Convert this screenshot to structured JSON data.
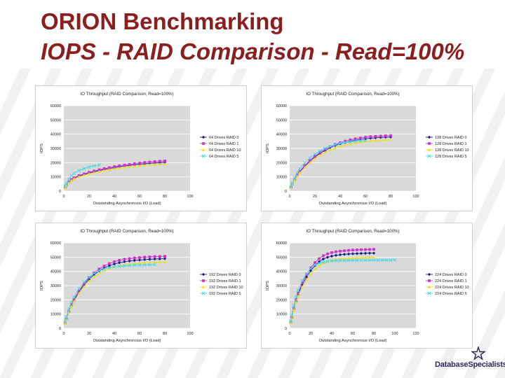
{
  "slide": {
    "title_line1": "ORION Benchmarking",
    "title_line2": "IOPS - RAID Comparison - Read=100%"
  },
  "logo": {
    "text": "DatabaseSpecialists"
  },
  "series_colors": [
    "#1a1a8c",
    "#cc33cc",
    "#e8e020",
    "#44d8e8"
  ],
  "series_markers": [
    "diamond",
    "square",
    "triangle",
    "cross"
  ],
  "chart_data": [
    {
      "type": "line",
      "title": "IO Throughput (RAID Comparison, Read=100%)",
      "xlabel": "Outstanding Asynchronous I/O (Load)",
      "ylabel": "IOPS",
      "xlim": [
        0,
        100
      ],
      "ylim": [
        0,
        60000
      ],
      "xticks": [
        0,
        20,
        40,
        60,
        80,
        100
      ],
      "yticks": [
        0,
        10000,
        20000,
        30000,
        40000,
        50000,
        60000
      ],
      "grid": true,
      "legend": "right",
      "series": [
        {
          "name": "64 Drives RAID 0",
          "x": [
            1,
            2,
            4,
            6,
            8,
            12,
            16,
            20,
            24,
            28,
            32,
            36,
            40,
            44,
            48,
            52,
            56,
            60,
            64,
            68,
            72,
            76,
            80
          ],
          "values": [
            2500,
            4000,
            6200,
            7800,
            9000,
            10500,
            11700,
            12700,
            13600,
            14400,
            15200,
            15900,
            16500,
            17100,
            17600,
            18100,
            18500,
            18900,
            19200,
            19500,
            19800,
            20000,
            20200
          ]
        },
        {
          "name": "64 Drives RAID 1",
          "x": [
            1,
            2,
            4,
            6,
            8,
            12,
            16,
            20,
            24,
            28,
            32,
            36,
            40,
            44,
            48,
            52,
            56,
            60,
            64,
            68,
            72,
            76,
            80
          ],
          "values": [
            2700,
            4200,
            6500,
            8100,
            9300,
            10900,
            12100,
            13200,
            14100,
            15000,
            15800,
            16500,
            17200,
            17800,
            18300,
            18800,
            19300,
            19700,
            20100,
            20400,
            20700,
            21000,
            21200
          ]
        },
        {
          "name": "64 Drives RAID 10",
          "x": [
            1,
            2,
            4,
            6,
            8,
            12,
            16,
            20,
            24,
            28,
            32,
            36,
            40,
            44,
            48,
            52,
            56,
            60,
            64,
            68,
            72,
            76,
            80
          ],
          "values": [
            2300,
            3800,
            5900,
            7400,
            8600,
            10000,
            11100,
            12100,
            12900,
            13700,
            14400,
            15000,
            15600,
            16100,
            16600,
            17000,
            17400,
            17800,
            18100,
            18400,
            18700,
            18900,
            19100
          ]
        },
        {
          "name": "64 Drives RAID 5",
          "x": [
            1,
            2,
            4,
            6,
            8,
            12,
            16,
            20,
            24,
            28
          ],
          "values": [
            3500,
            5500,
            8500,
            10800,
            12400,
            14400,
            15800,
            16900,
            17700,
            18300
          ]
        }
      ]
    },
    {
      "type": "line",
      "title": "IO Throughput (RAID Comparison, Read=100%)",
      "xlabel": "Outstanding Asynchronous I/O (Load)",
      "ylabel": "IOPS",
      "xlim": [
        0,
        100
      ],
      "ylim": [
        0,
        60000
      ],
      "xticks": [
        0,
        20,
        40,
        60,
        80,
        100
      ],
      "yticks": [
        0,
        10000,
        20000,
        30000,
        40000,
        50000,
        60000
      ],
      "grid": true,
      "legend": "right",
      "series": [
        {
          "name": "128 Drives RAID 0",
          "x": [
            1,
            2,
            4,
            6,
            8,
            12,
            16,
            20,
            24,
            28,
            32,
            36,
            40,
            44,
            48,
            52,
            56,
            60,
            64,
            68,
            72,
            76,
            80
          ],
          "values": [
            2500,
            4500,
            8000,
            11000,
            13500,
            17500,
            21000,
            24000,
            26500,
            28500,
            30500,
            32000,
            33200,
            34200,
            35000,
            35700,
            36300,
            36800,
            37200,
            37500,
            37700,
            37900,
            38000
          ]
        },
        {
          "name": "128 Drives RAID 1",
          "x": [
            1,
            2,
            4,
            6,
            8,
            12,
            16,
            20,
            24,
            28,
            32,
            36,
            40,
            44,
            48,
            52,
            56,
            60,
            64,
            68,
            72,
            76,
            80
          ],
          "values": [
            2600,
            4700,
            8300,
            11400,
            14000,
            18000,
            21500,
            24600,
            27200,
            29300,
            31200,
            32800,
            34000,
            35100,
            36000,
            36700,
            37300,
            37800,
            38200,
            38500,
            38700,
            38900,
            39000
          ]
        },
        {
          "name": "128 Drives RAID 10",
          "x": [
            1,
            2,
            4,
            6,
            8,
            12,
            16,
            20,
            24,
            28,
            32,
            36,
            40,
            44,
            48,
            52,
            56,
            60,
            64,
            68,
            72,
            76,
            80
          ],
          "values": [
            2400,
            4300,
            7600,
            10500,
            12900,
            16700,
            20000,
            22800,
            25100,
            27100,
            28900,
            30300,
            31500,
            32400,
            33200,
            33900,
            34400,
            34900,
            35200,
            35500,
            35700,
            35900,
            36000
          ]
        },
        {
          "name": "128 Drives RAID 5",
          "x": [
            1,
            2,
            4,
            6,
            8,
            12,
            16,
            20,
            24,
            28,
            32,
            36,
            40,
            44,
            48,
            52,
            56,
            60
          ],
          "values": [
            3000,
            5500,
            9500,
            13000,
            15800,
            20000,
            23300,
            26000,
            28200,
            30000,
            31400,
            32600,
            33500,
            34200,
            34700,
            35100,
            35400,
            35600
          ]
        }
      ]
    },
    {
      "type": "line",
      "title": "IO Throughput (RAID Comparison, Read=100%)",
      "xlabel": "Outstanding Asynchronous I/O (Load)",
      "ylabel": "IOPS",
      "xlim": [
        0,
        100
      ],
      "ylim": [
        0,
        60000
      ],
      "xticks": [
        0,
        20,
        40,
        60,
        80,
        100
      ],
      "yticks": [
        0,
        10000,
        20000,
        30000,
        40000,
        50000,
        60000
      ],
      "grid": true,
      "legend": "right",
      "series": [
        {
          "name": "192 Drives RAID 0",
          "x": [
            1,
            2,
            4,
            6,
            8,
            12,
            16,
            20,
            24,
            28,
            32,
            36,
            40,
            44,
            48,
            52,
            56,
            60,
            64,
            68,
            72,
            76,
            80
          ],
          "values": [
            3500,
            6500,
            11500,
            16000,
            19500,
            25500,
            30500,
            34500,
            37800,
            40300,
            42400,
            44000,
            45200,
            46100,
            46800,
            47300,
            47700,
            48000,
            48300,
            48500,
            48700,
            48800,
            48900
          ]
        },
        {
          "name": "192 Drives RAID 1",
          "x": [
            1,
            2,
            4,
            6,
            8,
            12,
            16,
            20,
            24,
            28,
            32,
            36,
            40,
            44,
            48,
            52,
            56,
            60,
            64,
            68,
            72,
            76,
            80
          ],
          "values": [
            3700,
            6800,
            12000,
            16600,
            20200,
            26300,
            31400,
            35600,
            39000,
            41700,
            43800,
            45500,
            46800,
            47800,
            48500,
            49000,
            49400,
            49700,
            50000,
            50200,
            50400,
            50500,
            50600
          ]
        },
        {
          "name": "192 Drives RAID 10",
          "x": [
            1,
            2,
            4,
            6,
            8,
            12,
            16,
            20,
            24,
            28,
            32,
            36,
            40,
            44,
            48,
            52,
            56,
            60,
            64,
            68,
            72,
            76,
            80
          ],
          "values": [
            3300,
            6200,
            11000,
            15300,
            18700,
            24500,
            29300,
            33200,
            36300,
            38700,
            40600,
            42000,
            43100,
            44000,
            44600,
            45100,
            45500,
            45800,
            46000,
            46200,
            46400,
            46500,
            46600
          ]
        },
        {
          "name": "192 Drives RAID 5",
          "x": [
            1,
            2,
            4,
            6,
            8,
            12,
            16,
            20,
            24,
            28,
            32,
            36,
            40,
            44,
            48,
            52,
            56,
            60,
            64,
            68,
            72
          ],
          "values": [
            4500,
            8000,
            13500,
            18300,
            22000,
            28000,
            32600,
            36000,
            38600,
            40400,
            41700,
            42600,
            43200,
            43600,
            43900,
            44100,
            44300,
            44400,
            44500,
            44600,
            44700
          ]
        }
      ]
    },
    {
      "type": "line",
      "title": "IO Throughput (RAID Comparison, Read=100%)",
      "xlabel": "Outstanding Asynchronous I/O (Load)",
      "ylabel": "IOPS",
      "xlim": [
        0,
        120
      ],
      "ylim": [
        0,
        60000
      ],
      "xticks": [
        0,
        20,
        40,
        60,
        80,
        100,
        120
      ],
      "yticks": [
        0,
        10000,
        20000,
        30000,
        40000,
        50000,
        60000
      ],
      "grid": true,
      "legend": "right",
      "series": [
        {
          "name": "224 Drives RAID 0",
          "x": [
            1,
            2,
            4,
            6,
            8,
            12,
            16,
            20,
            24,
            28,
            32,
            36,
            40,
            44,
            48,
            52,
            56,
            60,
            64,
            68,
            72,
            76,
            80
          ],
          "values": [
            4000,
            7500,
            13500,
            19000,
            23500,
            30500,
            36000,
            40500,
            44000,
            46800,
            48700,
            49900,
            50700,
            51300,
            51700,
            52000,
            52200,
            52400,
            52500,
            52600,
            52700,
            52800,
            52800
          ]
        },
        {
          "name": "224 Drives RAID 1",
          "x": [
            1,
            2,
            4,
            6,
            8,
            12,
            16,
            20,
            24,
            28,
            32,
            36,
            40,
            44,
            48,
            52,
            56,
            60,
            64,
            68,
            72,
            76,
            80
          ],
          "values": [
            4200,
            7800,
            14200,
            20000,
            24700,
            32000,
            37800,
            42500,
            46200,
            49000,
            51000,
            52300,
            53200,
            53800,
            54200,
            54500,
            54800,
            55000,
            55100,
            55200,
            55300,
            55400,
            55500
          ]
        },
        {
          "name": "224 Drives RAID 10",
          "x": [
            1,
            2,
            4,
            6,
            8,
            12,
            16,
            20,
            24,
            28,
            32,
            36,
            40,
            44,
            48,
            52,
            56,
            60,
            64,
            68,
            72,
            76,
            80
          ],
          "values": [
            3800,
            7200,
            13000,
            18300,
            22500,
            29200,
            34400,
            38400,
            41600,
            44000,
            45800,
            47000,
            47800,
            48400,
            48800,
            49100,
            49300,
            49500,
            49600,
            49700,
            49800,
            49800,
            49900
          ]
        },
        {
          "name": "224 Drives RAID 5",
          "x": [
            1,
            2,
            4,
            6,
            8,
            12,
            16,
            20,
            24,
            28,
            32,
            36,
            40,
            44,
            48,
            52,
            56,
            60,
            64,
            68,
            72,
            76,
            80,
            84,
            88,
            92,
            96,
            100
          ],
          "values": [
            5000,
            9200,
            16000,
            22000,
            26800,
            33500,
            38500,
            42000,
            44300,
            45700,
            46500,
            47000,
            47300,
            47500,
            47600,
            47700,
            47700,
            47800,
            47800,
            47800,
            47800,
            47800,
            47900,
            47900,
            47900,
            47900,
            47900,
            47900
          ]
        }
      ]
    }
  ]
}
